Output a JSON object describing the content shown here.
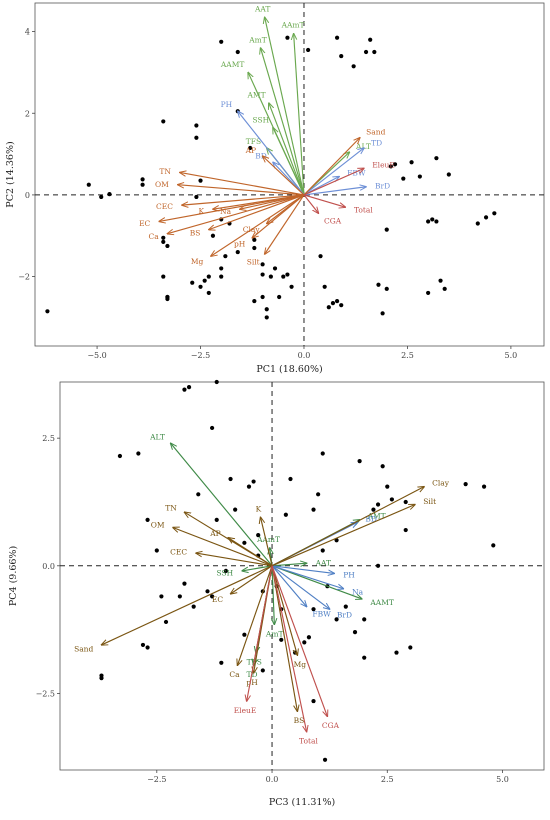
{
  "chart_data": [
    {
      "type": "scatter",
      "subtype": "biplot",
      "title": "",
      "xlabel": "PC1 (18.60%)",
      "ylabel": "PC2 (14.36%)",
      "xlim": [
        -6.5,
        5.8
      ],
      "ylim": [
        -3.7,
        4.7
      ],
      "xticks": [
        -5.0,
        -2.5,
        0.0,
        2.5,
        5.0
      ],
      "xtick_labels": [
        "−5.0",
        "−2.5",
        "0.0",
        "2.5",
        "5.0"
      ],
      "yticks": [
        -2,
        0,
        2,
        4
      ],
      "ytick_labels": [
        "−2",
        "0",
        "2",
        "4"
      ],
      "grid": false,
      "reference_lines": true,
      "colors": {
        "green": "#6aa84f",
        "blue": "#6d8fd6",
        "orange": "#c0652a",
        "red": "#c0504d",
        "points": "#000000"
      },
      "points": [
        [
          -6.2,
          -2.85
        ],
        [
          -5.2,
          0.25
        ],
        [
          -4.9,
          -0.05
        ],
        [
          -4.7,
          0.02
        ],
        [
          -3.9,
          0.38
        ],
        [
          -3.9,
          0.25
        ],
        [
          -3.4,
          1.8
        ],
        [
          -3.4,
          -2.0
        ],
        [
          -3.3,
          -2.5
        ],
        [
          -3.3,
          -2.55
        ],
        [
          -3.4,
          -1.05
        ],
        [
          -3.4,
          -1.15
        ],
        [
          -3.3,
          -1.25
        ],
        [
          -3.3,
          -2.5
        ],
        [
          -2.7,
          -2.15
        ],
        [
          -2.5,
          0.35
        ],
        [
          -2.6,
          -0.05
        ],
        [
          -2.6,
          1.7
        ],
        [
          -2.6,
          1.4
        ],
        [
          -2.3,
          -2.0
        ],
        [
          -2.4,
          -2.1
        ],
        [
          -2.3,
          -2.4
        ],
        [
          -2.5,
          -2.25
        ],
        [
          -2.2,
          -1.0
        ],
        [
          -2.0,
          3.75
        ],
        [
          -2.0,
          -2.0
        ],
        [
          -2.0,
          -1.8
        ],
        [
          -2.0,
          -0.6
        ],
        [
          -1.8,
          -0.7
        ],
        [
          -1.9,
          -1.5
        ],
        [
          -1.6,
          3.5
        ],
        [
          -1.6,
          2.05
        ],
        [
          -1.6,
          -1.4
        ],
        [
          -1.3,
          1.15
        ],
        [
          -1.2,
          -1.1
        ],
        [
          -1.2,
          -1.3
        ],
        [
          -1.2,
          -2.6
        ],
        [
          -1.0,
          -2.5
        ],
        [
          -1.0,
          -1.7
        ],
        [
          -1.0,
          -1.95
        ],
        [
          -0.9,
          -2.8
        ],
        [
          -0.9,
          -3.0
        ],
        [
          -0.8,
          -2.0
        ],
        [
          -0.7,
          -1.8
        ],
        [
          -0.5,
          -2.0
        ],
        [
          -0.4,
          3.85
        ],
        [
          -0.4,
          -1.95
        ],
        [
          -0.3,
          -2.25
        ],
        [
          -0.6,
          -2.5
        ],
        [
          0.1,
          3.55
        ],
        [
          0.4,
          -1.5
        ],
        [
          0.5,
          -2.25
        ],
        [
          0.6,
          -2.75
        ],
        [
          0.7,
          -2.65
        ],
        [
          0.8,
          -2.6
        ],
        [
          0.9,
          -2.7
        ],
        [
          0.8,
          3.85
        ],
        [
          0.9,
          3.4
        ],
        [
          1.2,
          3.15
        ],
        [
          1.5,
          3.5
        ],
        [
          1.6,
          3.8
        ],
        [
          1.7,
          3.5
        ],
        [
          1.8,
          -2.2
        ],
        [
          1.9,
          -2.9
        ],
        [
          2.0,
          -2.3
        ],
        [
          2.0,
          -0.85
        ],
        [
          2.1,
          0.7
        ],
        [
          2.2,
          0.75
        ],
        [
          2.4,
          0.4
        ],
        [
          2.6,
          0.8
        ],
        [
          2.8,
          0.45
        ],
        [
          3.0,
          -2.4
        ],
        [
          3.0,
          -0.65
        ],
        [
          3.1,
          -0.6
        ],
        [
          3.2,
          0.9
        ],
        [
          3.2,
          -0.65
        ],
        [
          3.3,
          -2.1
        ],
        [
          3.4,
          -2.3
        ],
        [
          3.5,
          0.5
        ],
        [
          4.2,
          -0.7
        ],
        [
          4.4,
          -0.55
        ],
        [
          4.6,
          -0.45
        ]
      ],
      "vectors": [
        {
          "label": "AAT",
          "x": -0.95,
          "y": 4.35,
          "color": "green"
        },
        {
          "label": "AAmT",
          "x": -0.25,
          "y": 3.95,
          "color": "green"
        },
        {
          "label": "AmT",
          "x": -1.05,
          "y": 3.6,
          "color": "green"
        },
        {
          "label": "AAMT",
          "x": -1.35,
          "y": 3.0,
          "color": "green"
        },
        {
          "label": "AMT",
          "x": -0.85,
          "y": 2.25,
          "color": "green"
        },
        {
          "label": "SSH",
          "x": -0.75,
          "y": 1.65,
          "color": "green"
        },
        {
          "label": "TFS",
          "x": -0.9,
          "y": 1.15,
          "color": "green"
        },
        {
          "label": "ALT",
          "x": 1.1,
          "y": 1.05,
          "color": "green"
        },
        {
          "label": "PH",
          "x": -1.6,
          "y": 2.05,
          "color": "blue"
        },
        {
          "label": "BD",
          "x": -0.75,
          "y": 0.8,
          "color": "blue"
        },
        {
          "label": "TD",
          "x": 1.45,
          "y": 1.15,
          "color": "blue"
        },
        {
          "label": "FBW",
          "x": 0.85,
          "y": 0.45,
          "color": "blue"
        },
        {
          "label": "BrD",
          "x": 1.5,
          "y": 0.2,
          "color": "blue"
        },
        {
          "label": "Sand",
          "x": 1.35,
          "y": 1.4,
          "color": "orange"
        },
        {
          "label": "AP",
          "x": -1.0,
          "y": 0.95,
          "color": "orange"
        },
        {
          "label": "TN",
          "x": -3.0,
          "y": 0.55,
          "color": "orange"
        },
        {
          "label": "OM",
          "x": -3.05,
          "y": 0.25,
          "color": "orange"
        },
        {
          "label": "CEC",
          "x": -2.95,
          "y": -0.25,
          "color": "orange"
        },
        {
          "label": "K",
          "x": -2.2,
          "y": -0.35,
          "color": "orange"
        },
        {
          "label": "Na",
          "x": -1.55,
          "y": -0.35,
          "color": "orange"
        },
        {
          "label": "EC",
          "x": -3.5,
          "y": -0.65,
          "color": "orange"
        },
        {
          "label": "Ca",
          "x": -3.3,
          "y": -0.95,
          "color": "orange"
        },
        {
          "label": "BS",
          "x": -2.3,
          "y": -0.85,
          "color": "orange"
        },
        {
          "label": "Mg",
          "x": -2.25,
          "y": -1.5,
          "color": "orange"
        },
        {
          "label": "Clay",
          "x": -0.9,
          "y": -0.7,
          "color": "orange"
        },
        {
          "label": "pH",
          "x": -1.25,
          "y": -1.05,
          "color": "orange"
        },
        {
          "label": "Silt",
          "x": -0.95,
          "y": -1.45,
          "color": "orange"
        },
        {
          "label": "EleuE",
          "x": 1.45,
          "y": 0.65,
          "color": "red"
        },
        {
          "label": "Total",
          "x": 1.0,
          "y": -0.3,
          "color": "red"
        },
        {
          "label": "CGA",
          "x": 0.35,
          "y": -0.45,
          "color": "red"
        }
      ]
    },
    {
      "type": "scatter",
      "subtype": "biplot",
      "title": "",
      "xlabel": "PC3 (11.31%)",
      "ylabel": "PC4 (9.66%)",
      "xlim": [
        -4.6,
        5.9
      ],
      "ylim": [
        -4.0,
        3.6
      ],
      "xticks": [
        -2.5,
        0.0,
        2.5,
        5.0
      ],
      "xtick_labels": [
        "−2.5",
        "0.0",
        "2.5",
        "5.0"
      ],
      "yticks": [
        -2.5,
        0.0,
        2.5
      ],
      "ytick_labels": [
        "−2.5",
        "0.0",
        "2.5"
      ],
      "grid": false,
      "reference_lines": true,
      "colors": {
        "green": "#3f8a47",
        "blue": "#4f7fc4",
        "orange": "#7a5512",
        "red": "#c0504d",
        "points": "#000000"
      },
      "points": [
        [
          -3.7,
          -2.15
        ],
        [
          -3.7,
          -2.2
        ],
        [
          -3.3,
          2.15
        ],
        [
          -2.9,
          2.2
        ],
        [
          -2.8,
          -1.55
        ],
        [
          -2.7,
          -1.6
        ],
        [
          -2.7,
          0.9
        ],
        [
          -2.5,
          0.3
        ],
        [
          -2.4,
          -0.6
        ],
        [
          -2.3,
          -1.1
        ],
        [
          -2.0,
          -0.6
        ],
        [
          -1.9,
          -0.35
        ],
        [
          -1.9,
          3.45
        ],
        [
          -1.8,
          3.5
        ],
        [
          -1.7,
          -0.8
        ],
        [
          -1.6,
          1.4
        ],
        [
          -1.4,
          -0.5
        ],
        [
          -1.3,
          -0.6
        ],
        [
          -1.3,
          2.7
        ],
        [
          -1.2,
          3.6
        ],
        [
          -1.2,
          0.9
        ],
        [
          -1.1,
          -1.9
        ],
        [
          -1.0,
          -0.1
        ],
        [
          -0.9,
          1.7
        ],
        [
          -0.8,
          1.1
        ],
        [
          -0.6,
          0.45
        ],
        [
          -0.6,
          -1.35
        ],
        [
          -0.5,
          1.55
        ],
        [
          -0.4,
          1.65
        ],
        [
          -0.3,
          0.6
        ],
        [
          -0.3,
          0.2
        ],
        [
          -0.2,
          -0.5
        ],
        [
          -0.2,
          -2.05
        ],
        [
          0.1,
          -0.4
        ],
        [
          0.2,
          -0.85
        ],
        [
          0.2,
          -1.45
        ],
        [
          0.3,
          1.0
        ],
        [
          0.4,
          1.7
        ],
        [
          0.5,
          -1.7
        ],
        [
          0.7,
          -1.5
        ],
        [
          0.8,
          -1.4
        ],
        [
          0.9,
          -0.85
        ],
        [
          0.9,
          -2.65
        ],
        [
          0.9,
          1.1
        ],
        [
          1.0,
          1.4
        ],
        [
          1.1,
          2.2
        ],
        [
          1.1,
          0.3
        ],
        [
          1.15,
          -3.8
        ],
        [
          1.2,
          -0.4
        ],
        [
          1.4,
          0.5
        ],
        [
          1.4,
          -1.05
        ],
        [
          1.6,
          -0.8
        ],
        [
          1.8,
          -1.3
        ],
        [
          1.9,
          2.05
        ],
        [
          2.0,
          -1.05
        ],
        [
          2.0,
          -1.8
        ],
        [
          2.2,
          1.1
        ],
        [
          2.3,
          1.2
        ],
        [
          2.3,
          0.0
        ],
        [
          2.4,
          1.95
        ],
        [
          2.5,
          1.55
        ],
        [
          2.6,
          1.3
        ],
        [
          2.7,
          -1.7
        ],
        [
          2.9,
          1.25
        ],
        [
          2.9,
          0.7
        ],
        [
          3.0,
          -1.6
        ],
        [
          4.2,
          1.6
        ],
        [
          4.6,
          1.55
        ],
        [
          4.8,
          0.4
        ]
      ],
      "vectors": [
        {
          "label": "ALT",
          "x": -2.2,
          "y": 2.4,
          "color": "green"
        },
        {
          "label": "AMT",
          "x": 1.9,
          "y": 0.9,
          "color": "green"
        },
        {
          "label": "AAmT",
          "x": -0.05,
          "y": 0.35,
          "color": "green"
        },
        {
          "label": "AAT",
          "x": 0.75,
          "y": 0.05,
          "color": "green"
        },
        {
          "label": "AAMT",
          "x": 1.95,
          "y": -0.65,
          "color": "green"
        },
        {
          "label": "SSH",
          "x": -0.65,
          "y": -0.1,
          "color": "green"
        },
        {
          "label": "AmT",
          "x": 0.05,
          "y": -1.15,
          "color": "green"
        },
        {
          "label": "TFS",
          "x": -0.35,
          "y": -1.7,
          "color": "green"
        },
        {
          "label": "TD",
          "x": -0.4,
          "y": -1.95,
          "color": "green"
        },
        {
          "label": "BD",
          "x": 1.85,
          "y": 0.85,
          "color": "blue"
        },
        {
          "label": "PH",
          "x": 1.35,
          "y": -0.15,
          "color": "blue"
        },
        {
          "label": "FBW",
          "x": 0.75,
          "y": -0.8,
          "color": "blue"
        },
        {
          "label": "BrD",
          "x": 1.25,
          "y": -0.85,
          "color": "blue"
        },
        {
          "label": "Na",
          "x": 1.55,
          "y": -0.45,
          "color": "blue"
        },
        {
          "label": "Clay",
          "x": 3.3,
          "y": 1.55,
          "color": "orange"
        },
        {
          "label": "Silt",
          "x": 3.1,
          "y": 1.2,
          "color": "orange"
        },
        {
          "label": "TN",
          "x": -1.9,
          "y": 1.05,
          "color": "orange"
        },
        {
          "label": "OM",
          "x": -2.15,
          "y": 0.75,
          "color": "orange"
        },
        {
          "label": "CEC",
          "x": -1.65,
          "y": 0.25,
          "color": "orange"
        },
        {
          "label": "AP",
          "x": -0.95,
          "y": 0.55,
          "color": "orange"
        },
        {
          "label": "K",
          "x": -0.25,
          "y": 0.95,
          "color": "orange"
        },
        {
          "label": "EC",
          "x": -0.9,
          "y": -0.55,
          "color": "orange"
        },
        {
          "label": "Sand",
          "x": -3.7,
          "y": -1.55,
          "color": "orange"
        },
        {
          "label": "Ca",
          "x": -0.75,
          "y": -1.95,
          "color": "orange"
        },
        {
          "label": "pH",
          "x": -0.4,
          "y": -2.1,
          "color": "orange"
        },
        {
          "label": "Mg",
          "x": 0.55,
          "y": -1.75,
          "color": "orange"
        },
        {
          "label": "BS",
          "x": 0.55,
          "y": -2.85,
          "color": "orange"
        },
        {
          "label": "EleuE",
          "x": -0.55,
          "y": -2.65,
          "color": "red"
        },
        {
          "label": "Total",
          "x": 0.75,
          "y": -3.25,
          "color": "red"
        },
        {
          "label": "CGA",
          "x": 1.2,
          "y": -2.95,
          "color": "red"
        }
      ]
    }
  ]
}
